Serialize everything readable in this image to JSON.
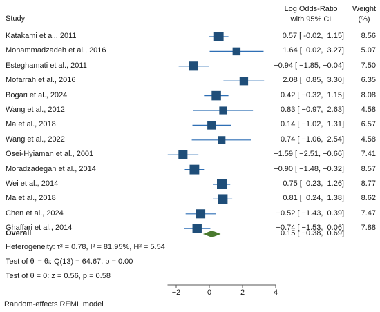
{
  "chart_data": {
    "type": "forest",
    "headers": {
      "study": "Study",
      "effect_line1": "Log Odds-Ratio",
      "effect_line2": "with 95% CI",
      "weight_line1": "Weight",
      "weight_line2": "(%)"
    },
    "studies": [
      {
        "name": "Katakami et al., 2011",
        "est": 0.57,
        "lo": -0.02,
        "hi": 1.15,
        "weight": 8.56,
        "ci_text": "0.57 [ -0.02,  1.15]",
        "weight_text": "8.56"
      },
      {
        "name": "Mohammadzadeh et al., 2016",
        "est": 1.64,
        "lo": 0.02,
        "hi": 3.27,
        "weight": 5.07,
        "ci_text": "1.64 [  0.02,  3.27]",
        "weight_text": "5.07"
      },
      {
        "name": "Esteghamati et al., 2011",
        "est": -0.94,
        "lo": -1.85,
        "hi": -0.04,
        "weight": 7.5,
        "ci_text": "−0.94 [ −1.85, −0.04]",
        "weight_text": "7.50"
      },
      {
        "name": "Mofarrah et al., 2016",
        "est": 2.08,
        "lo": 0.85,
        "hi": 3.3,
        "weight": 6.35,
        "ci_text": "2.08 [  0.85,  3.30]",
        "weight_text": "6.35"
      },
      {
        "name": "Bogari et al., 2024",
        "est": 0.42,
        "lo": -0.32,
        "hi": 1.15,
        "weight": 8.08,
        "ci_text": "0.42 [ −0.32,  1.15]",
        "weight_text": "8.08"
      },
      {
        "name": "Wang et al., 2012",
        "est": 0.83,
        "lo": -0.97,
        "hi": 2.63,
        "weight": 4.58,
        "ci_text": "0.83 [ −0.97,  2.63]",
        "weight_text": "4.58"
      },
      {
        "name": "Ma et al., 2018",
        "est": 0.14,
        "lo": -1.02,
        "hi": 1.31,
        "weight": 6.57,
        "ci_text": "0.14 [ −1.02,  1.31]",
        "weight_text": "6.57"
      },
      {
        "name": "Wang et al., 2022",
        "est": 0.74,
        "lo": -1.06,
        "hi": 2.54,
        "weight": 4.58,
        "ci_text": "0.74 [ −1.06,  2.54]",
        "weight_text": "4.58"
      },
      {
        "name": "Osei-Hyiaman et al., 2001",
        "est": -1.59,
        "lo": -2.51,
        "hi": -0.66,
        "weight": 7.41,
        "ci_text": "−1.59 [ −2.51, −0.66]",
        "weight_text": "7.41"
      },
      {
        "name": "Moradzadegan et al., 2014",
        "est": -0.9,
        "lo": -1.48,
        "hi": -0.32,
        "weight": 8.57,
        "ci_text": "−0.90 [ −1.48, −0.32]",
        "weight_text": "8.57"
      },
      {
        "name": "Wei et al., 2014",
        "est": 0.75,
        "lo": 0.23,
        "hi": 1.26,
        "weight": 8.77,
        "ci_text": "0.75 [  0.23,  1.26]",
        "weight_text": "8.77"
      },
      {
        "name": "Ma et al., 2018",
        "est": 0.81,
        "lo": 0.24,
        "hi": 1.38,
        "weight": 8.62,
        "ci_text": "0.81 [  0.24,  1.38]",
        "weight_text": "8.62"
      },
      {
        "name": "Chen et al., 2024",
        "est": -0.52,
        "lo": -1.43,
        "hi": 0.39,
        "weight": 7.47,
        "ci_text": "−0.52 [ −1.43,  0.39]",
        "weight_text": "7.47"
      },
      {
        "name": "Ghaffari et al., 2014",
        "est": -0.74,
        "lo": -1.53,
        "hi": 0.06,
        "weight": 7.88,
        "ci_text": "−0.74 [ −1.53,  0.06]",
        "weight_text": "7.88"
      }
    ],
    "overall": {
      "name": "Overall",
      "est": 0.15,
      "lo": -0.38,
      "hi": 0.69,
      "ci_text": "0.15 [ −0.38,  0.69]"
    },
    "stats": {
      "heterogeneity": "Heterogeneity: τ² = 0.78, I² = 81.95%, H² = 5.54",
      "test_homogeneity": "Test of θᵢ = θⱼ: Q(13) = 64.67, p = 0.00",
      "test_effect": "Test of θ = 0: z = 0.56, p = 0.58"
    },
    "xaxis": {
      "ticks": [
        -2,
        0,
        2,
        4
      ],
      "tick_labels": [
        "−2",
        "0",
        "2",
        "4"
      ],
      "range": [
        -2.5,
        4
      ]
    },
    "footnote": "Random-effects REML model",
    "colors": {
      "marker": "#1f4e79",
      "ci_line": "#2e6fb5",
      "diamond": "#4a7a2e",
      "axis": "#555555",
      "rule": "#bfbfbf"
    }
  }
}
